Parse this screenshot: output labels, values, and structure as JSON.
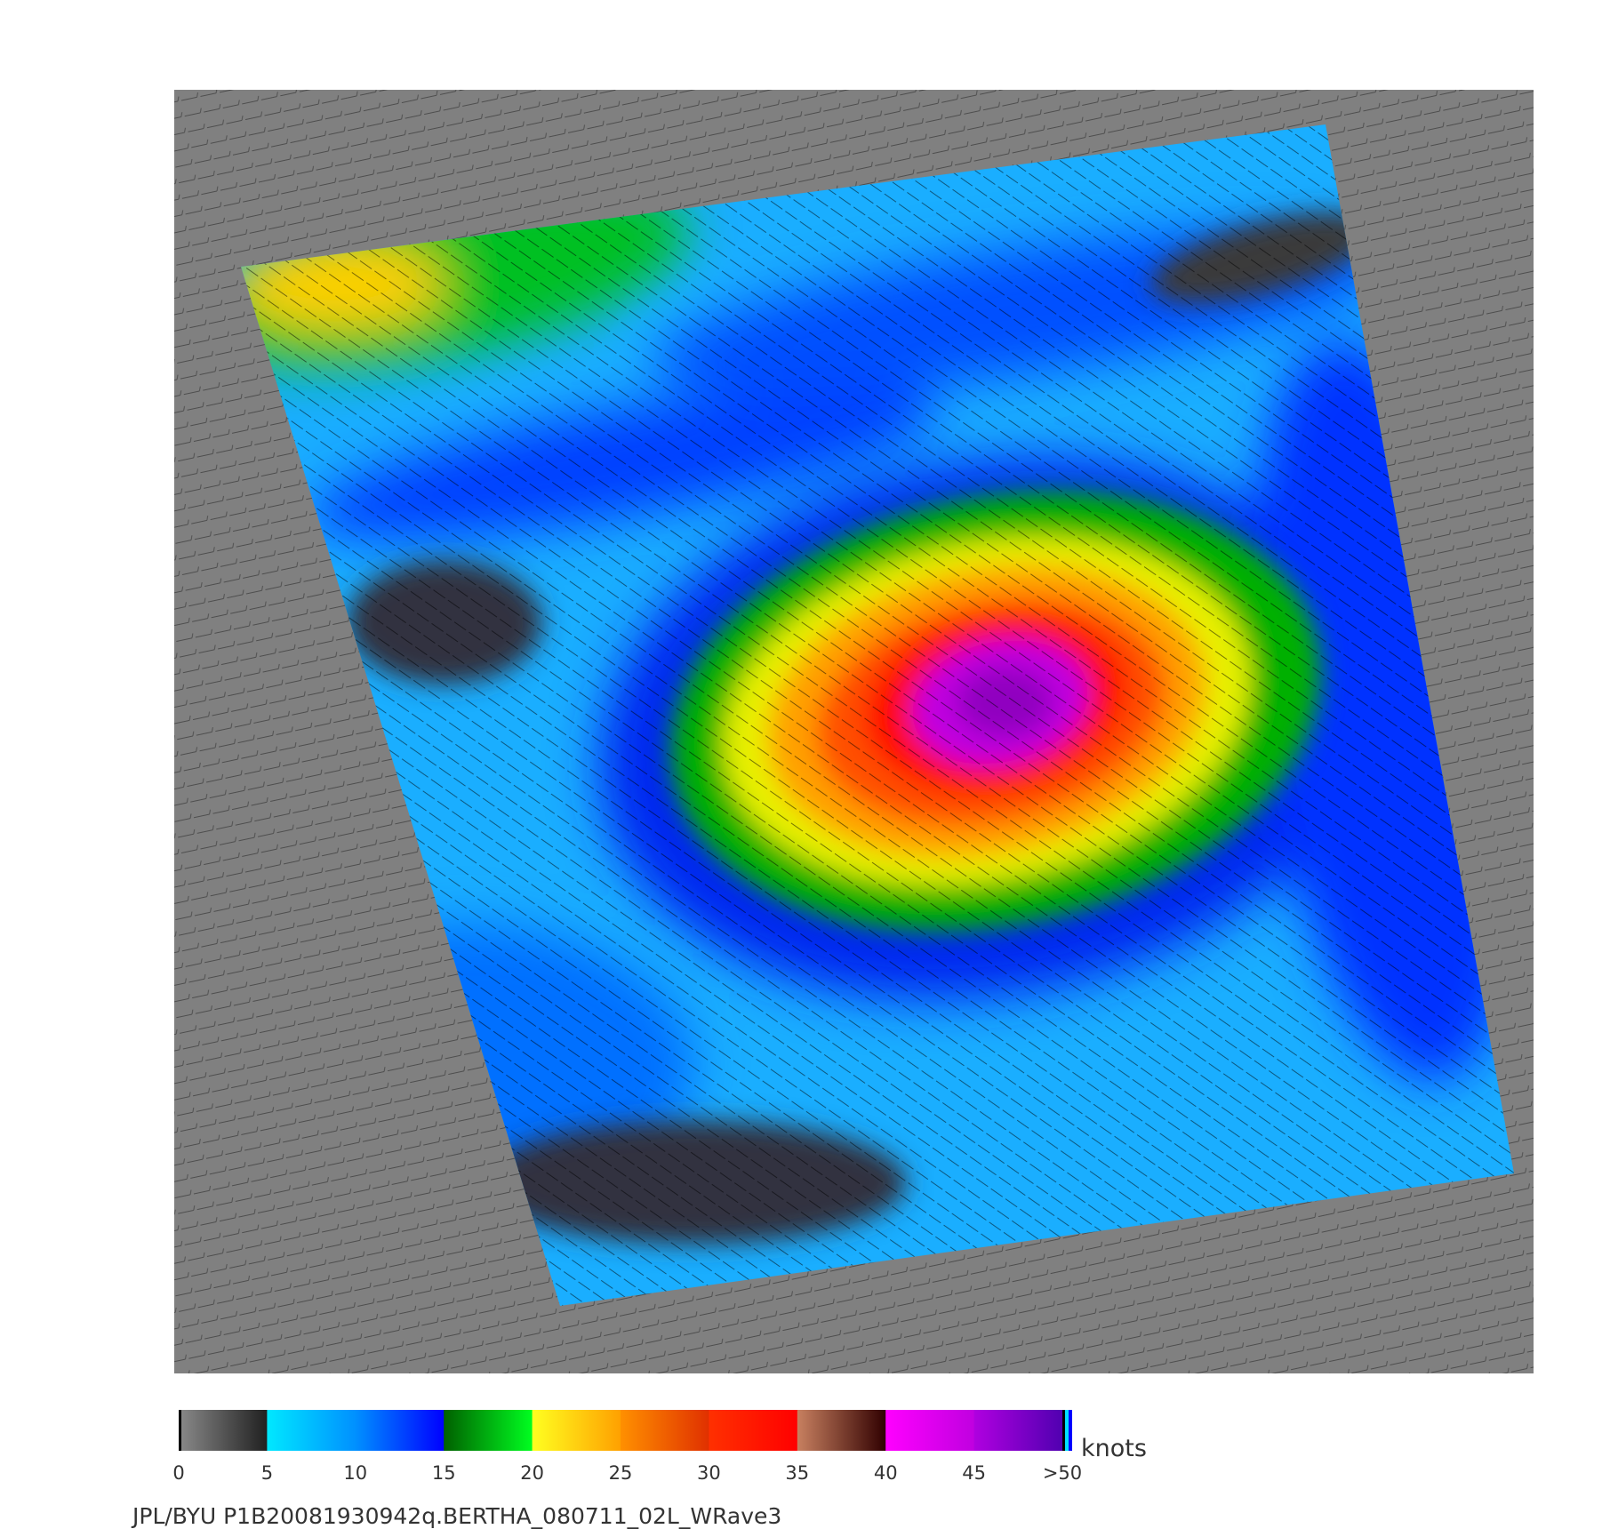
{
  "colorbar": {
    "ticks": [
      0,
      5,
      10,
      15,
      20,
      25,
      30,
      35,
      40,
      45,
      {
        "value": 50,
        "label": ">50"
      }
    ],
    "unit": "knots",
    "colors": [
      [
        "#8a8a8a",
        "#202020"
      ],
      [
        "#00e8ff",
        "#0090ff"
      ],
      [
        "#0090ff",
        "#0000ff"
      ],
      [
        "#006000",
        "#00ff20"
      ],
      [
        "#ffff20",
        "#ffa000"
      ],
      [
        "#ff9000",
        "#e03000"
      ],
      [
        "#ff3000",
        "#ff0000"
      ],
      [
        "#c88060",
        "#300000"
      ],
      [
        "#ff00ff",
        "#c000e0"
      ],
      [
        "#b000e0",
        "#5000b0"
      ]
    ]
  },
  "footer": "JPL/BYU  P1B20081930942q.BERTHA_080711_02L_WRave3"
}
